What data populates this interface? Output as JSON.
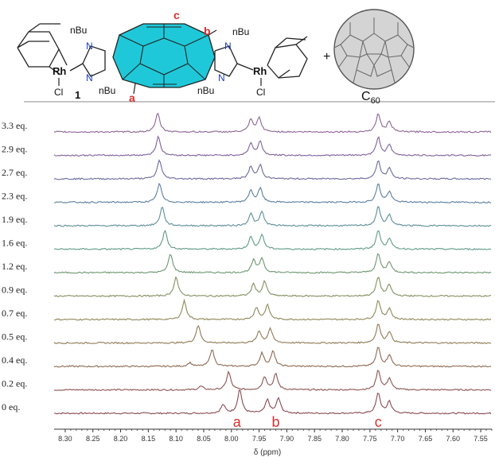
{
  "scheme": {
    "left_labels": [
      "nBu",
      "N",
      "N",
      "nBu",
      "Rh",
      "Cl",
      "1"
    ],
    "right_labels": [
      "nBu",
      "N",
      "N",
      "nBu",
      "Rh",
      "Cl"
    ],
    "proton_labels": [
      "a",
      "b",
      "c"
    ],
    "plus": "+",
    "c60_label": "C",
    "c60_subscript": "60"
  },
  "colors": {
    "core_fill": "#1fc8d8",
    "proton_label": "#d93030",
    "nitrogen": "#1f3fbf",
    "c60_fill": "#d4d4d4"
  },
  "chart_data": {
    "type": "line",
    "xlabel": "δ (ppm)",
    "x_range": [
      8.32,
      7.53
    ],
    "x_reversed": true,
    "x_ticks": [
      "8.30",
      "8.25",
      "8.20",
      "8.15",
      "8.10",
      "8.05",
      "8.00",
      "7.95",
      "7.90",
      "7.85",
      "7.80",
      "7.75",
      "7.70",
      "7.65",
      "7.60",
      "7.55"
    ],
    "grid": false,
    "peak_labels": [
      {
        "label": "a",
        "ppm": 7.99
      },
      {
        "label": "b",
        "ppm": 7.92
      },
      {
        "label": "c",
        "ppm": 7.735
      }
    ],
    "series": [
      {
        "name": "0 eq.",
        "color": "#8a4a52",
        "peaks": [
          [
            8.015,
            0.35
          ],
          [
            7.985,
            1.0
          ],
          [
            7.935,
            0.55
          ],
          [
            7.915,
            0.62
          ],
          [
            7.735,
            0.85
          ],
          [
            7.715,
            0.5
          ]
        ]
      },
      {
        "name": "0.2 eq.",
        "color": "#8c5552",
        "peaks": [
          [
            8.055,
            0.15
          ],
          [
            8.005,
            0.75
          ],
          [
            7.94,
            0.55
          ],
          [
            7.92,
            0.65
          ],
          [
            7.735,
            0.82
          ],
          [
            7.715,
            0.48
          ]
        ]
      },
      {
        "name": "0.4 eq.",
        "color": "#8d6a52",
        "peaks": [
          [
            8.075,
            0.15
          ],
          [
            8.035,
            0.72
          ],
          [
            7.945,
            0.55
          ],
          [
            7.925,
            0.62
          ],
          [
            7.735,
            0.8
          ],
          [
            7.715,
            0.48
          ]
        ]
      },
      {
        "name": "0.5 eq.",
        "color": "#8f7a55",
        "peaks": [
          [
            8.06,
            0.75
          ],
          [
            7.95,
            0.5
          ],
          [
            7.93,
            0.6
          ],
          [
            7.735,
            0.8
          ],
          [
            7.715,
            0.47
          ]
        ]
      },
      {
        "name": "0.7 eq.",
        "color": "#8e8858",
        "peaks": [
          [
            8.085,
            0.78
          ],
          [
            7.955,
            0.5
          ],
          [
            7.935,
            0.6
          ],
          [
            7.735,
            0.8
          ],
          [
            7.715,
            0.46
          ]
        ]
      },
      {
        "name": "0.9 eq.",
        "color": "#829060",
        "peaks": [
          [
            8.1,
            0.8
          ],
          [
            7.96,
            0.5
          ],
          [
            7.94,
            0.6
          ],
          [
            7.735,
            0.8
          ],
          [
            7.715,
            0.46
          ]
        ]
      },
      {
        "name": "1.2 eq.",
        "color": "#6e9670",
        "peaks": [
          [
            8.11,
            0.8
          ],
          [
            7.96,
            0.5
          ],
          [
            7.945,
            0.6
          ],
          [
            7.735,
            0.78
          ],
          [
            7.715,
            0.45
          ]
        ]
      },
      {
        "name": "1.6 eq.",
        "color": "#5f9a88",
        "peaks": [
          [
            8.12,
            0.8
          ],
          [
            7.965,
            0.5
          ],
          [
            7.945,
            0.6
          ],
          [
            7.735,
            0.78
          ],
          [
            7.715,
            0.45
          ]
        ]
      },
      {
        "name": "1.9 eq.",
        "color": "#5c8e98",
        "peaks": [
          [
            8.125,
            0.8
          ],
          [
            7.965,
            0.5
          ],
          [
            7.945,
            0.58
          ],
          [
            7.735,
            0.78
          ],
          [
            7.715,
            0.45
          ]
        ]
      },
      {
        "name": "2.3 eq.",
        "color": "#5c7ea0",
        "peaks": [
          [
            8.13,
            0.8
          ],
          [
            7.965,
            0.5
          ],
          [
            7.948,
            0.58
          ],
          [
            7.735,
            0.76
          ],
          [
            7.715,
            0.44
          ]
        ]
      },
      {
        "name": "2.7 eq.",
        "color": "#6a6aa0",
        "peaks": [
          [
            8.13,
            0.8
          ],
          [
            7.965,
            0.5
          ],
          [
            7.948,
            0.58
          ],
          [
            7.735,
            0.76
          ],
          [
            7.715,
            0.44
          ]
        ]
      },
      {
        "name": "2.9 eq.",
        "color": "#7e629c",
        "peaks": [
          [
            8.132,
            0.8
          ],
          [
            7.965,
            0.5
          ],
          [
            7.948,
            0.58
          ],
          [
            7.735,
            0.76
          ],
          [
            7.715,
            0.44
          ]
        ]
      },
      {
        "name": "3.3 eq.",
        "color": "#8e6496",
        "peaks": [
          [
            8.133,
            0.8
          ],
          [
            7.965,
            0.5
          ],
          [
            7.95,
            0.58
          ],
          [
            7.735,
            0.76
          ],
          [
            7.715,
            0.44
          ]
        ]
      }
    ]
  }
}
